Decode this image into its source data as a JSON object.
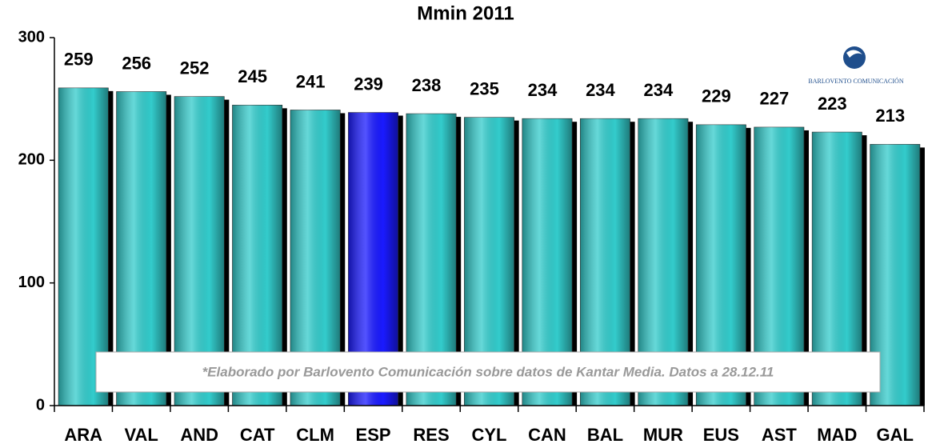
{
  "chart_data": {
    "type": "bar",
    "title": "Mmin 2011",
    "categories": [
      "ARA",
      "VAL",
      "AND",
      "CAT",
      "CLM",
      "ESP",
      "RES",
      "CYL",
      "CAN",
      "BAL",
      "MUR",
      "EUS",
      "AST",
      "MAD",
      "GAL"
    ],
    "values": [
      259,
      256,
      252,
      245,
      241,
      239,
      238,
      235,
      234,
      234,
      234,
      229,
      227,
      223,
      213
    ],
    "colors": [
      "#33cccc",
      "#33cccc",
      "#33cccc",
      "#33cccc",
      "#33cccc",
      "#1a1aff",
      "#33cccc",
      "#33cccc",
      "#33cccc",
      "#33cccc",
      "#33cccc",
      "#33cccc",
      "#33cccc",
      "#33cccc",
      "#33cccc"
    ],
    "ylim": [
      0,
      300
    ],
    "yticks": [
      0,
      100,
      200,
      300
    ],
    "annotation": "*Elaborado por Barlovento Comunicación sobre datos de Kantar Media. Datos a 28.12.11",
    "logo_text": "BARLOVENTO COMUNICACIÓN"
  }
}
